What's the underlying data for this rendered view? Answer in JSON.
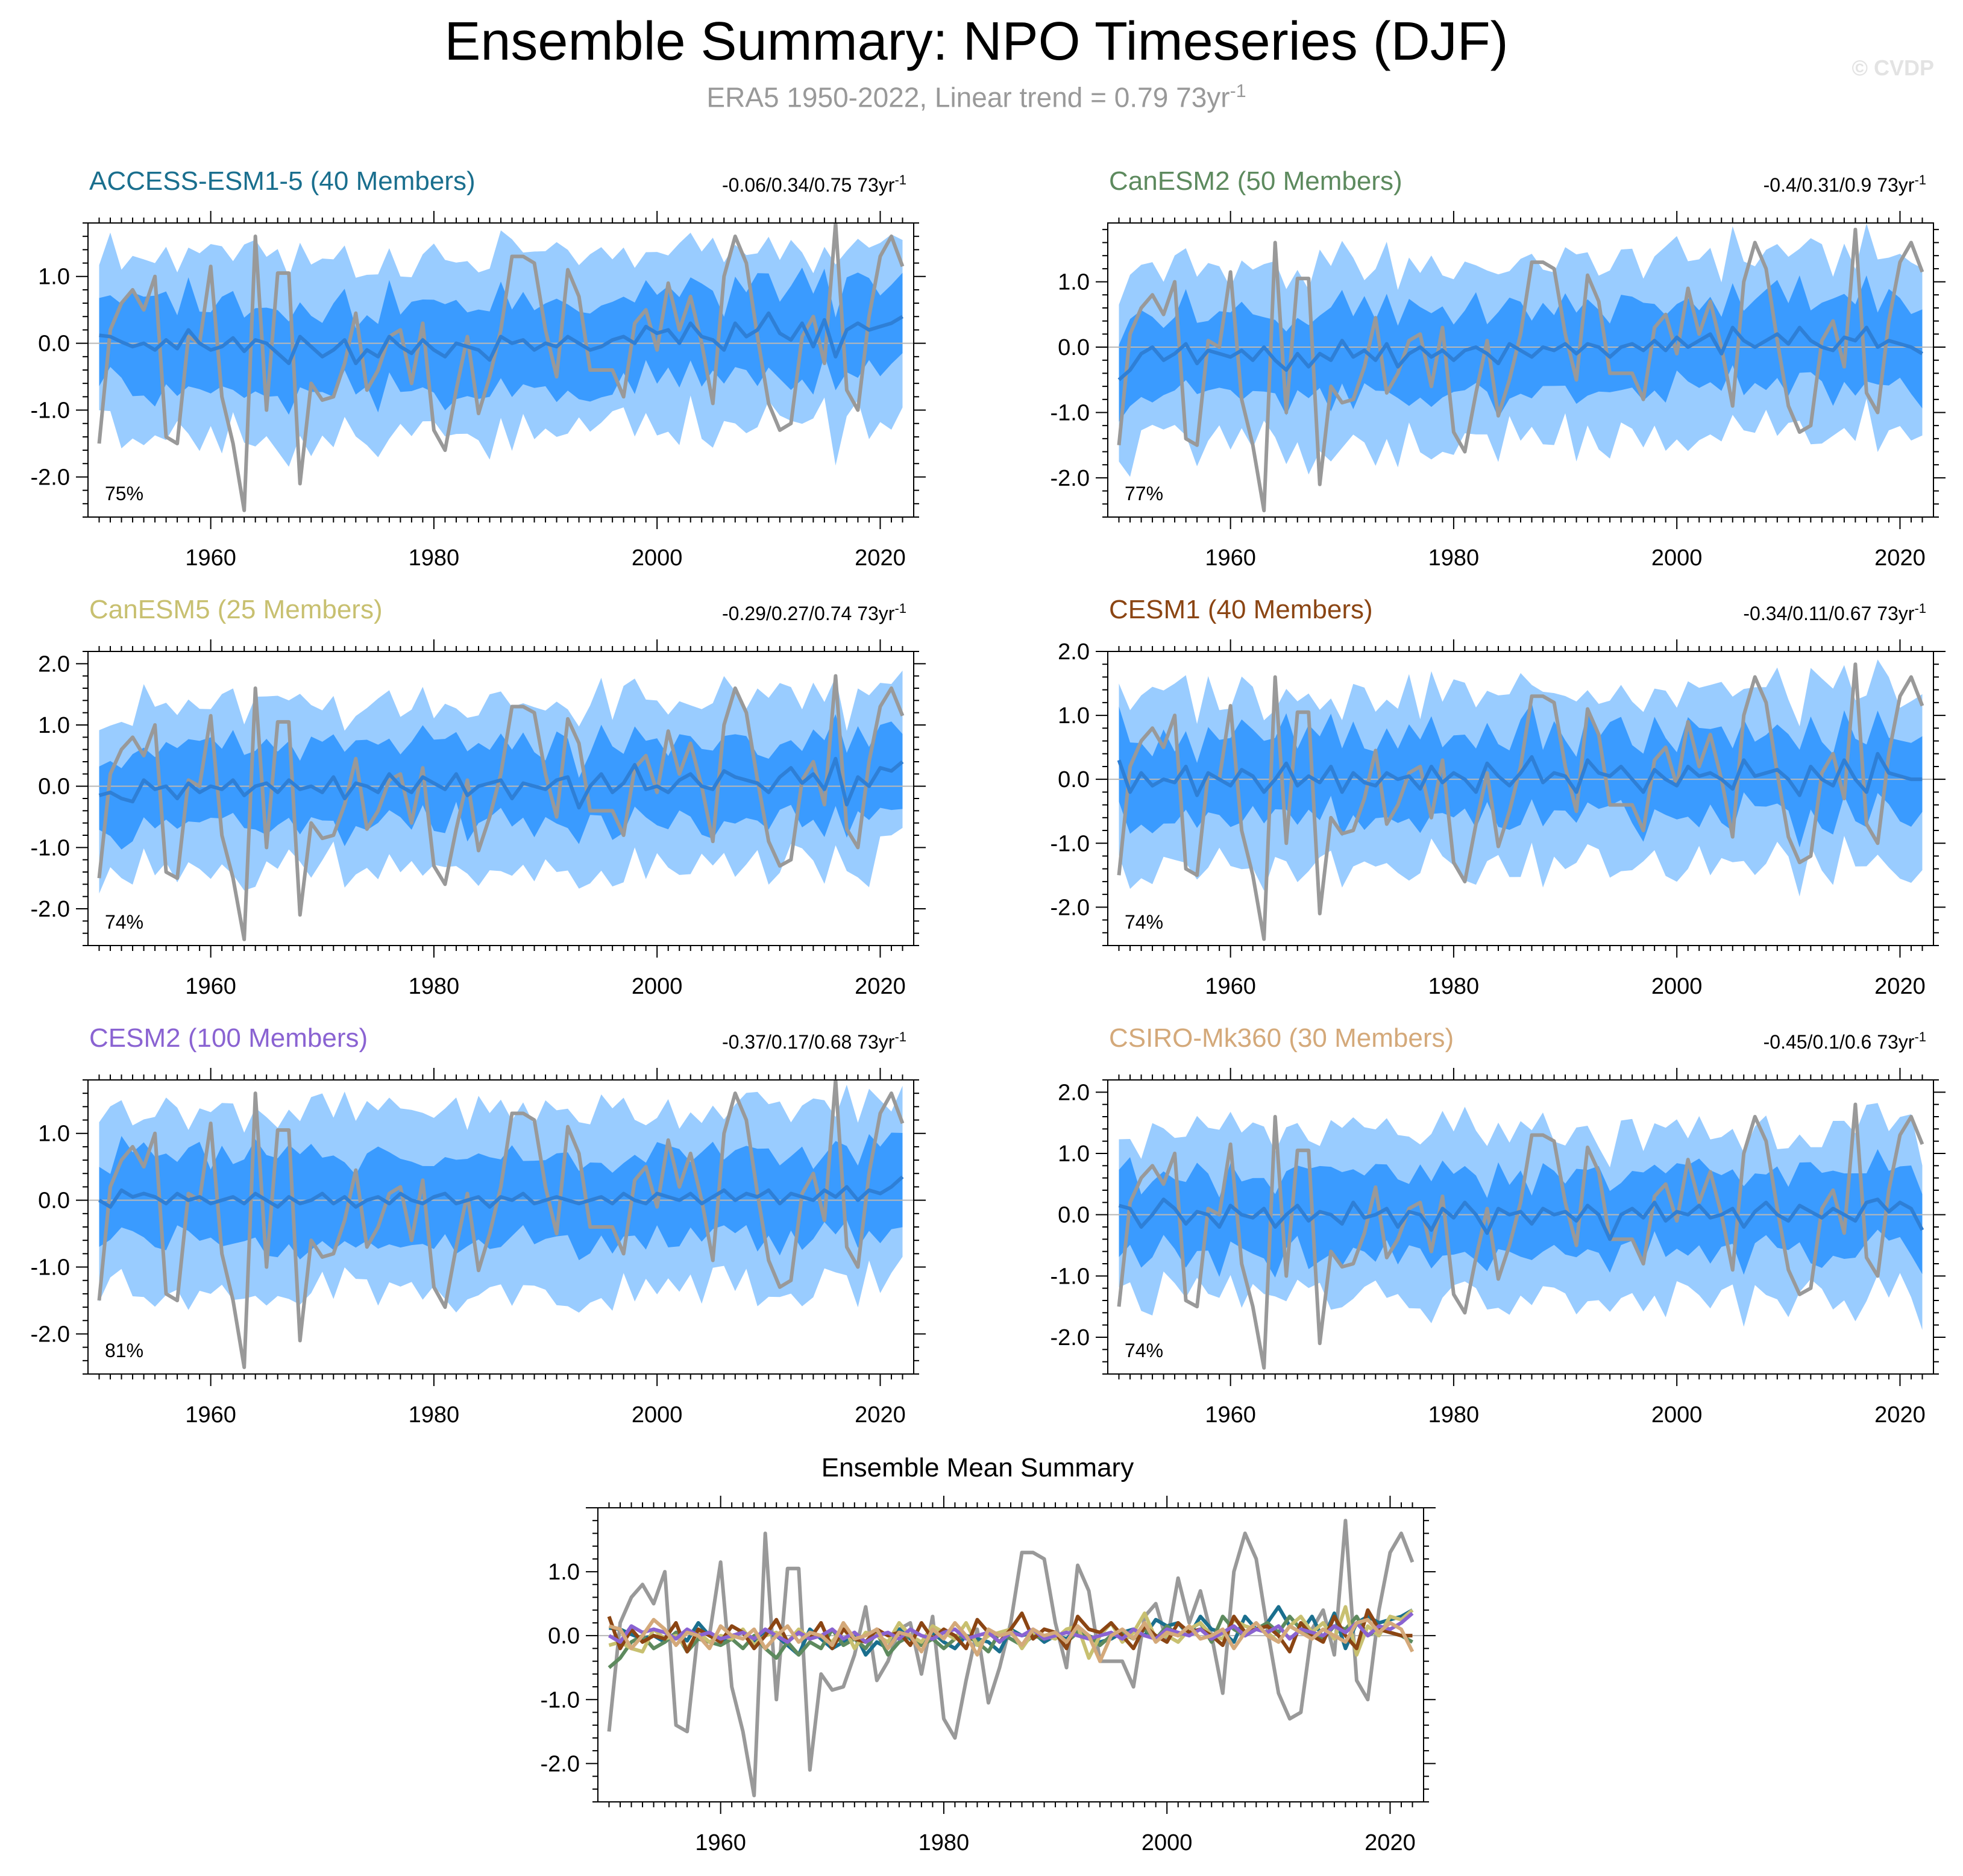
{
  "page": {
    "title": "Ensemble Summary: NPO Timeseries (DJF)",
    "subtitle": "ERA5 1950-2022, Linear trend = 0.79 73yr",
    "subtitle_sup": "-1",
    "watermark": "© CVDP"
  },
  "colors": {
    "outer_band": "#99ccff",
    "inner_band": "#3a9bff",
    "ensemble_mean": "#2e7fd6",
    "observations": "#999999",
    "zero_line": "#b7b7b7"
  },
  "chart_data": {
    "type": "line",
    "x": [
      1950,
      1951,
      1952,
      1953,
      1954,
      1955,
      1956,
      1957,
      1958,
      1959,
      1960,
      1961,
      1962,
      1963,
      1964,
      1965,
      1966,
      1967,
      1968,
      1969,
      1970,
      1971,
      1972,
      1973,
      1974,
      1975,
      1976,
      1977,
      1978,
      1979,
      1980,
      1981,
      1982,
      1983,
      1984,
      1985,
      1986,
      1987,
      1988,
      1989,
      1990,
      1991,
      1992,
      1993,
      1994,
      1995,
      1996,
      1997,
      1998,
      1999,
      2000,
      2001,
      2002,
      2003,
      2004,
      2005,
      2006,
      2007,
      2008,
      2009,
      2010,
      2011,
      2012,
      2013,
      2014,
      2015,
      2016,
      2017,
      2018,
      2019,
      2020,
      2021,
      2022
    ],
    "xlim": [
      1949,
      2023
    ],
    "xticks": [
      "1960",
      "1980",
      "2000",
      "2020"
    ],
    "observations": {
      "name": "ERA5",
      "values": [
        -1.5,
        0.2,
        0.6,
        0.8,
        0.5,
        1.0,
        -1.4,
        -1.5,
        0.1,
        0.0,
        1.15,
        -0.8,
        -1.5,
        -2.5,
        1.6,
        -1.0,
        1.05,
        1.05,
        -2.1,
        -0.6,
        -0.85,
        -0.8,
        -0.3,
        0.45,
        -0.7,
        -0.4,
        0.1,
        0.2,
        -0.6,
        0.3,
        -1.3,
        -1.6,
        -0.7,
        0.1,
        -1.05,
        -0.5,
        0.2,
        1.3,
        1.3,
        1.2,
        0.2,
        -0.5,
        1.1,
        0.7,
        -0.4,
        -0.4,
        -0.4,
        -0.8,
        0.3,
        0.5,
        -0.1,
        0.9,
        0.2,
        0.7,
        0.0,
        -0.9,
        1.0,
        1.6,
        1.2,
        0.1,
        -0.9,
        -1.3,
        -1.2,
        0.1,
        0.4,
        -0.3,
        1.8,
        -0.7,
        -1.0,
        0.4,
        1.3,
        1.6,
        1.15
      ]
    },
    "panels": [
      {
        "model": "ACCESS-ESM1-5 (40 Members)",
        "title_color": "#1a6f8e",
        "trend": "-0.06/0.34/0.75 73yr",
        "trend_sup": "-1",
        "percent": "75%",
        "ylim": [
          -2.6,
          1.8
        ],
        "yticks": [
          "1.0",
          "0.0",
          "-1.0",
          "-2.0"
        ],
        "ytick_values": [
          1,
          0,
          -1,
          -2
        ],
        "ensemble_mean": [
          0.12,
          0.1,
          0.02,
          -0.05,
          0.0,
          -0.1,
          0.05,
          -0.08,
          0.2,
          0.0,
          -0.1,
          -0.05,
          0.08,
          -0.12,
          0.05,
          0.0,
          -0.15,
          -0.3,
          0.1,
          -0.05,
          -0.2,
          -0.1,
          0.05,
          -0.3,
          -0.1,
          -0.2,
          0.1,
          -0.05,
          -0.15,
          0.05,
          -0.1,
          -0.2,
          0.0,
          -0.05,
          -0.1,
          -0.25,
          0.1,
          0.0,
          0.05,
          -0.1,
          0.0,
          -0.05,
          0.1,
          0.0,
          -0.1,
          -0.05,
          0.05,
          0.1,
          0.0,
          0.25,
          0.15,
          0.2,
          0.0,
          0.3,
          0.1,
          0.05,
          -0.1,
          0.3,
          0.1,
          0.2,
          0.45,
          0.15,
          0.05,
          0.3,
          -0.05,
          0.35,
          -0.2,
          0.2,
          0.3,
          0.2,
          0.25,
          0.3,
          0.4
        ]
      },
      {
        "model": "CanESM2 (50 Members)",
        "title_color": "#5d8a5e",
        "trend": "-0.4/0.31/0.9 73yr",
        "trend_sup": "-1",
        "percent": "77%",
        "ylim": [
          -2.6,
          1.9
        ],
        "yticks": [
          "1.0",
          "0.0",
          "-1.0",
          "-2.0"
        ],
        "ytick_values": [
          1,
          0,
          -1,
          -2
        ],
        "ensemble_mean": [
          -0.5,
          -0.35,
          -0.1,
          0.0,
          -0.2,
          -0.1,
          0.05,
          -0.25,
          -0.05,
          -0.1,
          -0.15,
          -0.05,
          -0.2,
          0.0,
          -0.2,
          -0.35,
          -0.1,
          -0.3,
          -0.1,
          -0.2,
          0.1,
          -0.15,
          -0.05,
          -0.2,
          0.05,
          -0.3,
          -0.1,
          0.0,
          -0.15,
          -0.05,
          -0.2,
          -0.05,
          0.0,
          -0.1,
          -0.25,
          0.05,
          -0.05,
          -0.15,
          0.0,
          -0.05,
          0.05,
          -0.1,
          0.05,
          0.0,
          -0.15,
          0.0,
          0.05,
          -0.05,
          0.1,
          -0.05,
          0.15,
          0.0,
          0.1,
          0.2,
          -0.1,
          0.3,
          0.1,
          0.0,
          0.1,
          0.2,
          0.05,
          0.3,
          0.1,
          0.0,
          -0.05,
          0.15,
          0.1,
          0.3,
          0.0,
          0.1,
          0.05,
          0.0,
          -0.1
        ]
      },
      {
        "model": "CanESM5 (25 Members)",
        "title_color": "#c8c070",
        "trend": "-0.29/0.27/0.74 73yr",
        "trend_sup": "-1",
        "percent": "74%",
        "ylim": [
          -2.6,
          2.2
        ],
        "yticks": [
          "2.0",
          "1.0",
          "0.0",
          "-1.0",
          "-2.0"
        ],
        "ytick_values": [
          2,
          1,
          0,
          -1,
          -2
        ],
        "ensemble_mean": [
          -0.15,
          -0.1,
          -0.2,
          -0.25,
          0.1,
          -0.05,
          0.0,
          -0.2,
          0.05,
          -0.1,
          0.0,
          -0.05,
          0.1,
          -0.15,
          0.0,
          0.05,
          -0.1,
          0.1,
          -0.05,
          0.0,
          -0.1,
          0.15,
          -0.2,
          0.05,
          0.0,
          -0.1,
          0.2,
          0.0,
          -0.1,
          0.15,
          0.05,
          -0.05,
          0.2,
          -0.15,
          0.0,
          0.05,
          0.1,
          -0.2,
          0.05,
          0.0,
          -0.05,
          0.1,
          0.15,
          -0.35,
          0.0,
          0.2,
          -0.1,
          0.05,
          0.35,
          -0.05,
          0.0,
          -0.1,
          0.1,
          0.2,
          0.0,
          -0.05,
          0.25,
          0.15,
          0.1,
          0.05,
          -0.1,
          0.15,
          0.3,
          0.05,
          0.2,
          -0.05,
          0.45,
          -0.3,
          0.15,
          0.0,
          0.3,
          0.25,
          0.4
        ]
      },
      {
        "model": "CESM1 (40 Members)",
        "title_color": "#8b4513",
        "trend": "-0.34/0.11/0.67 73yr",
        "trend_sup": "-1",
        "percent": "74%",
        "ylim": [
          -2.6,
          2.0
        ],
        "yticks": [
          "2.0",
          "1.0",
          "0.0",
          "-1.0",
          "-2.0"
        ],
        "ytick_values": [
          2,
          1,
          0,
          -1,
          -2
        ],
        "ensemble_mean": [
          0.3,
          -0.2,
          0.1,
          -0.1,
          0.0,
          -0.05,
          0.2,
          -0.25,
          0.1,
          0.0,
          -0.1,
          0.15,
          0.05,
          -0.2,
          0.0,
          0.25,
          -0.1,
          0.05,
          -0.05,
          0.2,
          -0.2,
          0.1,
          -0.05,
          -0.1,
          0.1,
          0.0,
          0.05,
          -0.15,
          0.2,
          -0.05,
          0.1,
          0.0,
          -0.2,
          0.25,
          0.05,
          -0.1,
          0.1,
          0.35,
          -0.05,
          0.1,
          0.05,
          -0.2,
          0.3,
          0.1,
          0.05,
          0.2,
          0.0,
          -0.2,
          0.15,
          0.0,
          -0.1,
          0.2,
          0.05,
          0.1,
          0.0,
          -0.15,
          0.3,
          0.05,
          0.1,
          0.15,
          0.0,
          -0.25,
          0.2,
          0.0,
          -0.1,
          0.3,
          0.0,
          -0.2,
          0.4,
          0.1,
          0.05,
          0.0,
          0.0
        ]
      },
      {
        "model": "CESM2 (100 Members)",
        "title_color": "#8a63d2",
        "trend": "-0.37/0.17/0.68 73yr",
        "trend_sup": "-1",
        "percent": "81%",
        "ylim": [
          -2.6,
          1.8
        ],
        "yticks": [
          "1.0",
          "0.0",
          "-1.0",
          "-2.0"
        ],
        "ytick_values": [
          1,
          0,
          -1,
          -2
        ],
        "ensemble_mean": [
          0.0,
          -0.1,
          0.15,
          0.05,
          0.1,
          0.05,
          -0.05,
          0.1,
          0.0,
          0.05,
          -0.05,
          0.0,
          0.05,
          -0.05,
          0.1,
          0.0,
          -0.1,
          0.05,
          -0.05,
          0.0,
          0.1,
          -0.05,
          0.05,
          -0.1,
          0.0,
          0.05,
          -0.05,
          0.1,
          0.0,
          -0.05,
          0.05,
          0.1,
          -0.05,
          0.0,
          0.05,
          -0.1,
          0.05,
          0.0,
          0.1,
          -0.05,
          0.0,
          0.05,
          0.0,
          -0.05,
          0.0,
          0.05,
          -0.05,
          0.1,
          0.0,
          -0.05,
          0.1,
          0.05,
          0.0,
          0.1,
          -0.05,
          0.05,
          0.15,
          0.0,
          0.1,
          0.05,
          0.15,
          -0.05,
          0.1,
          0.05,
          0.0,
          0.15,
          0.05,
          0.2,
          0.0,
          0.15,
          0.1,
          0.2,
          0.35
        ]
      },
      {
        "model": "CSIRO-Mk360 (30 Members)",
        "title_color": "#d4a97a",
        "trend": "-0.45/0.1/0.6 73yr",
        "trend_sup": "-1",
        "percent": "74%",
        "ylim": [
          -2.6,
          2.2
        ],
        "yticks": [
          "2.0",
          "1.0",
          "0.0",
          "-1.0",
          "-2.0"
        ],
        "ytick_values": [
          2,
          1,
          0,
          -1,
          -2
        ],
        "ensemble_mean": [
          0.15,
          0.1,
          -0.2,
          0.0,
          0.25,
          0.1,
          -0.15,
          0.05,
          0.0,
          -0.2,
          0.15,
          0.0,
          -0.05,
          0.1,
          -0.2,
          0.0,
          0.15,
          -0.1,
          0.05,
          0.0,
          -0.15,
          0.2,
          -0.05,
          0.0,
          0.1,
          -0.2,
          0.05,
          0.0,
          -0.25,
          0.1,
          -0.05,
          0.2,
          0.0,
          -0.3,
          0.1,
          0.0,
          0.05,
          -0.15,
          0.1,
          0.0,
          0.05,
          -0.1,
          0.15,
          0.0,
          -0.4,
          0.0,
          0.1,
          -0.05,
          0.2,
          -0.1,
          0.05,
          0.0,
          0.15,
          -0.05,
          0.0,
          0.1,
          -0.2,
          0.05,
          0.2,
          0.0,
          -0.1,
          0.15,
          0.05,
          -0.05,
          0.1,
          0.0,
          -0.1,
          0.2,
          0.25,
          0.05,
          0.2,
          0.1,
          -0.25
        ]
      }
    ],
    "summary": {
      "title": "Ensemble Mean Summary",
      "ylim": [
        -2.6,
        2.0
      ],
      "yticks": [
        "1.0",
        "0.0",
        "-1.0",
        "-2.0"
      ],
      "ytick_values": [
        1,
        0,
        -1,
        -2
      ]
    }
  }
}
